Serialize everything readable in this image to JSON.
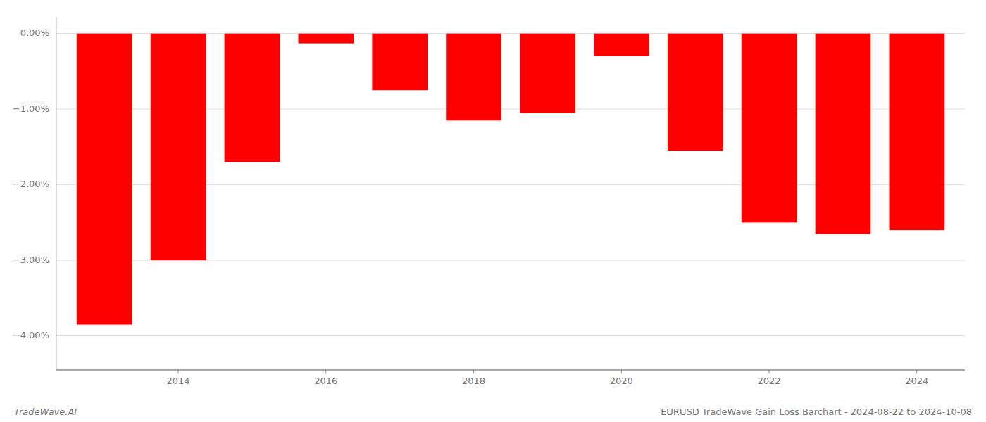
{
  "chart_data": {
    "type": "bar",
    "x": [
      2013,
      2014,
      2015,
      2016,
      2017,
      2018,
      2019,
      2020,
      2021,
      2022,
      2023,
      2024
    ],
    "values": [
      -3.85,
      -3.0,
      -1.7,
      -0.13,
      -0.75,
      -1.15,
      -1.05,
      -0.3,
      -1.55,
      -2.5,
      -2.65,
      -2.6
    ],
    "color": "#ff0000",
    "xlim": [
      2012.35,
      2024.65
    ],
    "xticks": [
      2014,
      2016,
      2018,
      2020,
      2022,
      2024
    ],
    "ylim": [
      -4.45,
      0.22
    ],
    "yticks": [
      {
        "value": 0.0,
        "label": "0.00%"
      },
      {
        "value": -1.0,
        "label": "−1.00%"
      },
      {
        "value": -2.0,
        "label": "−2.00%"
      },
      {
        "value": -3.0,
        "label": "−3.00%"
      },
      {
        "value": -4.0,
        "label": "−4.00%"
      }
    ],
    "grid": true,
    "annotations": [
      "TradeWave.AI",
      "EURUSD TradeWave Gain Loss Barchart - 2024-08-22 to 2024-10-08"
    ]
  }
}
